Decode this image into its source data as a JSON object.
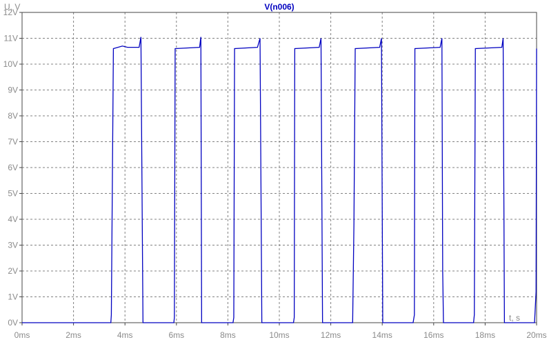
{
  "chart_data": {
    "type": "line",
    "title": "V(n006)",
    "ylabel": "U, V",
    "xlabel": "t, s",
    "xlim": [
      0,
      20
    ],
    "ylim": [
      0,
      12
    ],
    "grid": true,
    "x_ticks": [
      "0ms",
      "2ms",
      "4ms",
      "6ms",
      "8ms",
      "10ms",
      "12ms",
      "14ms",
      "16ms",
      "18ms",
      "20ms"
    ],
    "y_ticks": [
      "0V",
      "1V",
      "2V",
      "3V",
      "4V",
      "5V",
      "6V",
      "7V",
      "8V",
      "9V",
      "10V",
      "11V",
      "12V"
    ],
    "x_unit": "ms",
    "series": [
      {
        "name": "V(n006)",
        "color": "#0000c0",
        "points": [
          [
            0,
            0
          ],
          [
            3.45,
            0
          ],
          [
            3.47,
            0.3
          ],
          [
            3.55,
            10.6
          ],
          [
            3.9,
            10.7
          ],
          [
            4.1,
            10.65
          ],
          [
            4.55,
            10.65
          ],
          [
            4.62,
            11.05
          ],
          [
            4.7,
            0
          ],
          [
            5.9,
            0
          ],
          [
            5.92,
            0.2
          ],
          [
            5.95,
            10.6
          ],
          [
            6.9,
            10.65
          ],
          [
            6.95,
            11.05
          ],
          [
            6.98,
            0
          ],
          [
            8.2,
            0
          ],
          [
            8.23,
            0.2
          ],
          [
            8.26,
            10.6
          ],
          [
            9.15,
            10.65
          ],
          [
            9.25,
            11.0
          ],
          [
            9.32,
            0
          ],
          [
            10.55,
            0
          ],
          [
            10.58,
            0.2
          ],
          [
            10.6,
            10.6
          ],
          [
            11.55,
            10.65
          ],
          [
            11.62,
            11.0
          ],
          [
            11.68,
            0
          ],
          [
            12.85,
            0
          ],
          [
            12.9,
            3.8
          ],
          [
            12.95,
            10.6
          ],
          [
            13.9,
            10.65
          ],
          [
            13.97,
            11.0
          ],
          [
            14.02,
            0
          ],
          [
            15.2,
            0
          ],
          [
            15.25,
            0.3
          ],
          [
            15.27,
            10.6
          ],
          [
            16.25,
            10.65
          ],
          [
            16.32,
            11.0
          ],
          [
            16.35,
            2.0
          ],
          [
            16.38,
            0
          ],
          [
            17.55,
            0
          ],
          [
            17.58,
            0.3
          ],
          [
            17.62,
            10.6
          ],
          [
            18.65,
            10.65
          ],
          [
            18.7,
            11.0
          ],
          [
            18.75,
            0
          ],
          [
            19.92,
            0
          ],
          [
            19.98,
            1.2
          ],
          [
            20,
            10.6
          ]
        ]
      }
    ]
  }
}
